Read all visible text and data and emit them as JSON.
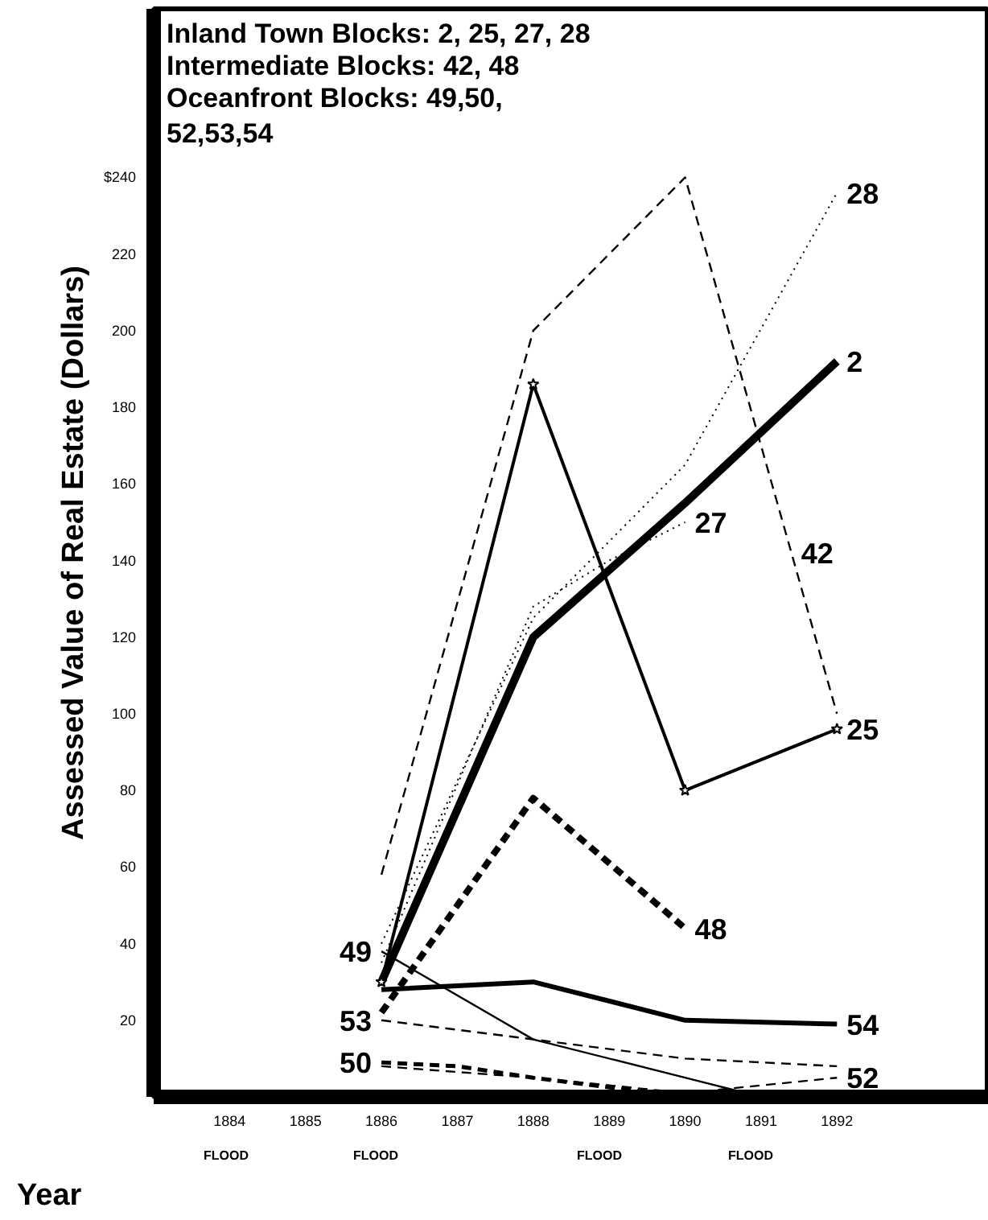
{
  "chart_data": {
    "type": "line",
    "xlabel": "Year",
    "ylabel": "Assessed Value of Real Estate (Dollars)",
    "xlim": [
      1883,
      1894
    ],
    "ylim": [
      0,
      284
    ],
    "xticks": [
      1884,
      1885,
      1886,
      1887,
      1888,
      1889,
      1890,
      1891,
      1892
    ],
    "yticks": [
      20,
      40,
      60,
      80,
      100,
      120,
      140,
      160,
      180,
      200,
      220,
      {
        "value": 240,
        "label": "$240"
      }
    ],
    "grid": false,
    "marker": "none",
    "series": [
      {
        "color": "#000000",
        "line_style": "solid",
        "x": [
          1886,
          1888,
          1890,
          1892
        ],
        "values": [
          30,
          120,
          155,
          192
        ]
      },
      {
        "color": "#000000",
        "line_style": "solid",
        "marker": "star",
        "x": [
          1886,
          1888,
          1890,
          1892
        ],
        "values": [
          30,
          186,
          80,
          96
        ]
      },
      {
        "color": "#000000",
        "line_style": "dotted",
        "x": [
          1886,
          1888,
          1889,
          1890
        ],
        "values": [
          35,
          128,
          140,
          150
        ]
      },
      {
        "color": "#000000",
        "line_style": "dotted",
        "x": [
          1886,
          1888,
          1890,
          1892
        ],
        "values": [
          40,
          125,
          165,
          236
        ]
      },
      {
        "color": "#000000",
        "line_style": "dashed",
        "x": [
          1886,
          1888,
          1890,
          1892
        ],
        "values": [
          58,
          200,
          240,
          100
        ]
      },
      {
        "color": "#000000",
        "line_style": "dashed",
        "x": [
          1886,
          1888,
          1890
        ],
        "values": [
          22,
          78,
          44
        ]
      },
      {
        "color": "#000000",
        "line_style": "solid",
        "x": [
          1886,
          1888,
          1890,
          1891
        ],
        "values": [
          38,
          15,
          5,
          0
        ]
      },
      {
        "color": "#000000",
        "line_style": "dashed",
        "x": [
          1886,
          1887,
          1888,
          1890,
          1891
        ],
        "values": [
          9,
          8,
          5,
          0,
          0
        ]
      },
      {
        "color": "#000000",
        "line_style": "dashed",
        "x": [
          1886,
          1888,
          1890,
          1892
        ],
        "values": [
          8,
          5,
          1,
          5
        ]
      },
      {
        "color": "#000000",
        "line_style": "dashed",
        "x": [
          1886,
          1888,
          1890,
          1892
        ],
        "values": [
          20,
          15,
          10,
          8
        ]
      },
      {
        "color": "#000000",
        "line_style": "solid",
        "x": [
          1886,
          1888,
          1890,
          1892
        ],
        "values": [
          28,
          30,
          20,
          19
        ]
      }
    ],
    "annotations": [
      "Inland Town Blocks: 2, 25, 27, 28",
      "Intermediate Blocks: 42, 48",
      "Oceanfront Blocks: 49,50,\n52,53,54",
      {
        "text": "28",
        "x": 1892,
        "y": 236
      },
      {
        "text": "2",
        "x": 1892,
        "y": 192
      },
      {
        "text": "42",
        "x": 1891.4,
        "y": 142
      },
      {
        "text": "27",
        "x": 1890,
        "y": 150
      },
      {
        "text": "25",
        "x": 1892,
        "y": 96
      },
      {
        "text": "48",
        "x": 1890,
        "y": 44
      },
      {
        "text": "49",
        "x": 1886,
        "y": 38
      },
      {
        "text": "53",
        "x": 1886,
        "y": 20
      },
      {
        "text": "50",
        "x": 1886,
        "y": 9
      },
      {
        "text": "54",
        "x": 1892,
        "y": 19
      },
      {
        "text": "52",
        "x": 1892,
        "y": 5
      },
      "FLOOD",
      "FLOOD",
      "FLOOD",
      "FLOOD"
    ]
  }
}
